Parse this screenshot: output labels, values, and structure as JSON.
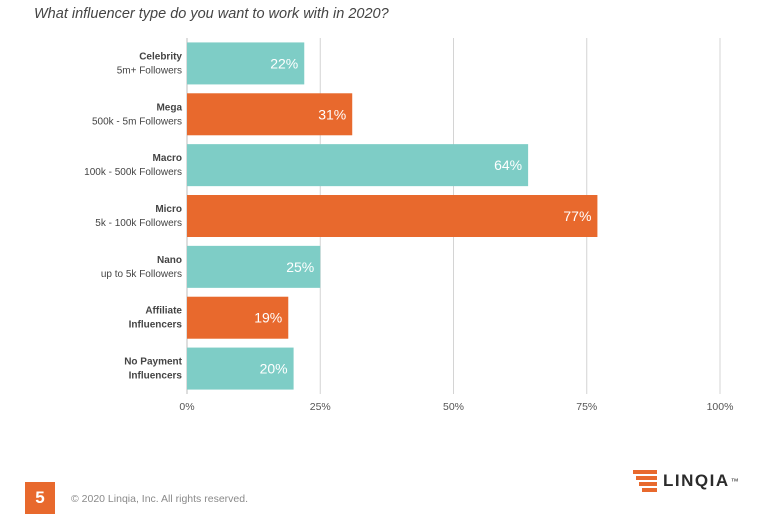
{
  "chart_data": {
    "type": "bar",
    "orientation": "horizontal",
    "title": "What influencer type do you want to work with in 2020?",
    "categories": [
      [
        "Celebrity",
        "5m+ Followers"
      ],
      [
        "Mega",
        "500k - 5m Followers"
      ],
      [
        "Macro",
        "100k - 500k Followers"
      ],
      [
        "Micro",
        "5k - 100k Followers"
      ],
      [
        "Nano",
        "up to 5k Followers"
      ],
      [
        "Affiliate",
        "Influencers"
      ],
      [
        "No Payment",
        "Influencers"
      ]
    ],
    "values": [
      22,
      31,
      64,
      77,
      25,
      19,
      20
    ],
    "value_labels": [
      "22%",
      "31%",
      "64%",
      "77%",
      "25%",
      "19%",
      "20%"
    ],
    "bar_colors": [
      "#7ecdc6",
      "#e8692d",
      "#7ecdc6",
      "#e8692d",
      "#7ecdc6",
      "#e8692d",
      "#7ecdc6"
    ],
    "xlim": [
      0,
      100
    ],
    "xticks": [
      0,
      25,
      50,
      75,
      100
    ],
    "xtick_labels": [
      "0%",
      "25%",
      "50%",
      "75%",
      "100%"
    ],
    "grid": true,
    "xlabel": "",
    "ylabel": ""
  },
  "footer": {
    "page_number": "5",
    "copyright": "© 2020 Linqia, Inc. All rights reserved.",
    "brand": "LINQIA",
    "brand_mark": "™"
  },
  "colors": {
    "teal": "#7ecdc6",
    "orange": "#e8692d",
    "grid": "#d4d4d4"
  }
}
